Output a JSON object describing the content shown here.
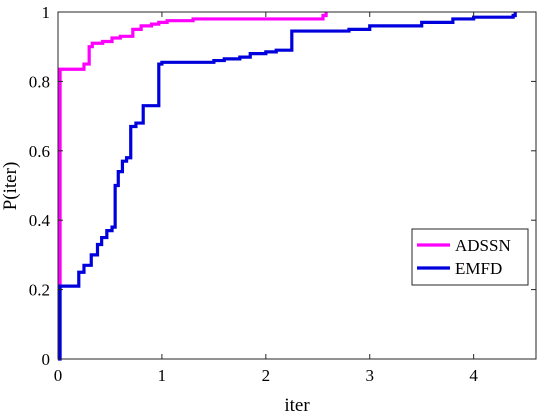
{
  "chart_data": {
    "type": "line",
    "line_shape": "step",
    "title": "",
    "xlabel": "iter",
    "ylabel": "P(iter)",
    "xlim": [
      0,
      4.6
    ],
    "ylim": [
      0,
      1
    ],
    "xticks": [
      0,
      1,
      2,
      3,
      4
    ],
    "yticks": [
      0,
      0.2,
      0.4,
      0.6,
      0.8,
      1
    ],
    "xtick_labels": [
      "0",
      "1",
      "2",
      "3",
      "4"
    ],
    "ytick_labels": [
      "0",
      "0.2",
      "0.4",
      "0.6",
      "0.8",
      "1"
    ],
    "grid": false,
    "legend_position": "lower-right",
    "series": [
      {
        "name": "ADSSN",
        "color": "#ff00ff",
        "x": [
          0,
          0.02,
          0.02,
          0.25,
          0.3,
          0.33,
          0.43,
          0.52,
          0.6,
          0.72,
          0.8,
          0.9,
          0.97,
          1.05,
          1.3,
          2.55,
          2.58
        ],
        "y": [
          0.21,
          0.21,
          0.835,
          0.85,
          0.9,
          0.91,
          0.915,
          0.925,
          0.93,
          0.95,
          0.96,
          0.965,
          0.97,
          0.975,
          0.98,
          0.99,
          1.0
        ]
      },
      {
        "name": "EMFD",
        "color": "#0000dd",
        "x": [
          0,
          0.02,
          0.02,
          0.2,
          0.25,
          0.32,
          0.38,
          0.42,
          0.47,
          0.52,
          0.55,
          0.58,
          0.62,
          0.66,
          0.7,
          0.75,
          0.82,
          0.97,
          1.0,
          1.5,
          1.6,
          1.75,
          1.85,
          2.0,
          2.1,
          2.25,
          2.8,
          3.0,
          3.5,
          3.8,
          4.0,
          4.38,
          4.4
        ],
        "y": [
          0.0,
          0.0,
          0.21,
          0.25,
          0.27,
          0.3,
          0.33,
          0.35,
          0.37,
          0.38,
          0.5,
          0.54,
          0.57,
          0.58,
          0.67,
          0.68,
          0.73,
          0.85,
          0.855,
          0.86,
          0.865,
          0.87,
          0.88,
          0.885,
          0.89,
          0.945,
          0.95,
          0.96,
          0.97,
          0.98,
          0.985,
          0.99,
          1.0
        ]
      }
    ]
  }
}
